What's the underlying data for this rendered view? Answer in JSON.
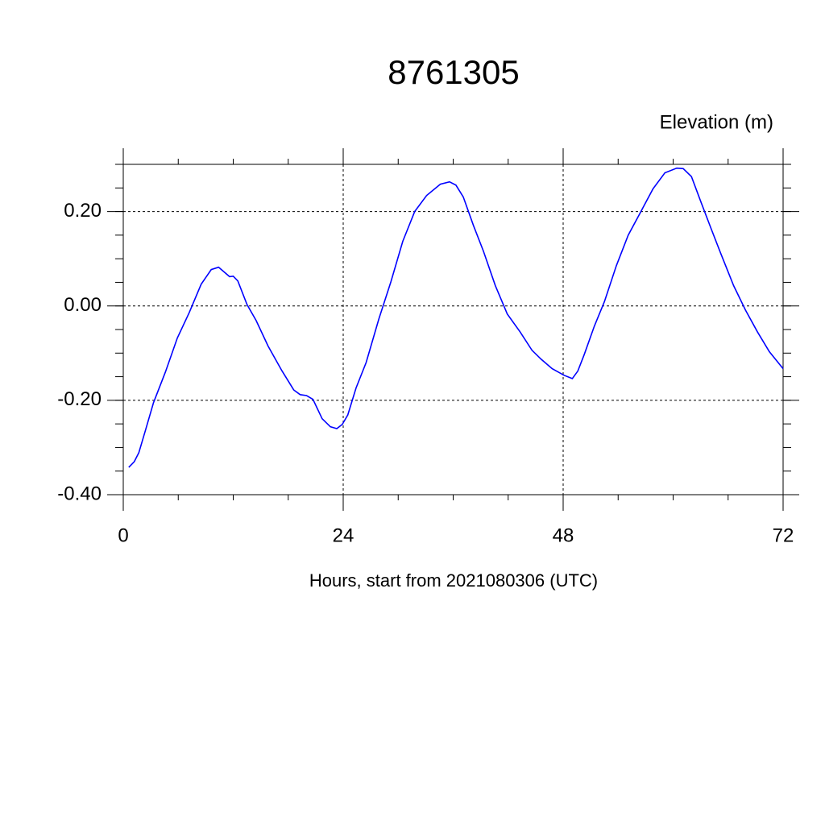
{
  "chart_data": {
    "type": "line",
    "title": "8761305",
    "subtitle": "Elevation (m)",
    "x_label": "Hours, start from 2021080306 (UTC)",
    "xlim": [
      0,
      72
    ],
    "ylim": [
      -0.4,
      0.3
    ],
    "xticks": [
      0,
      24,
      48,
      72
    ],
    "yticks": [
      {
        "value": -0.4,
        "label": "-0.40"
      },
      {
        "value": -0.2,
        "label": "-0.20"
      },
      {
        "value": 0,
        "label": "0.00"
      },
      {
        "value": 0.2,
        "label": "0.20"
      }
    ],
    "grid": true,
    "x": [
      0.6,
      1.2,
      1.7,
      2.4,
      3.3,
      4.6,
      5.9,
      7.2,
      8.5,
      9.6,
      10.4,
      11.0,
      11.6,
      12.0,
      12.5,
      13.5,
      14.5,
      15.8,
      17.3,
      18.6,
      19.3,
      20.0,
      20.7,
      21.7,
      22.6,
      23.3,
      23.9,
      24.5,
      25.4,
      26.5,
      27.9,
      29.2,
      30.5,
      31.8,
      33.1,
      34.6,
      35.6,
      36.3,
      37.1,
      38.2,
      39.3,
      40.6,
      41.9,
      43.3,
      44.6,
      45.6,
      46.8,
      48.1,
      49.0,
      49.6,
      50.3,
      51.4,
      52.5,
      53.8,
      55.1,
      56.4,
      57.8,
      59.1,
      60.4,
      61.1,
      62.0,
      63.0,
      64.1,
      65.2,
      66.6,
      67.9,
      69.2,
      70.5,
      72.0
    ],
    "series": [
      {
        "color": "#0000ff",
        "values": [
          -0.342,
          -0.33,
          -0.311,
          -0.265,
          -0.205,
          -0.14,
          -0.068,
          -0.014,
          0.046,
          0.077,
          0.082,
          0.072,
          0.062,
          0.063,
          0.053,
          0.003,
          -0.031,
          -0.085,
          -0.137,
          -0.178,
          -0.188,
          -0.19,
          -0.198,
          -0.239,
          -0.256,
          -0.26,
          -0.251,
          -0.231,
          -0.174,
          -0.12,
          -0.027,
          0.051,
          0.137,
          0.2,
          0.234,
          0.258,
          0.263,
          0.256,
          0.231,
          0.171,
          0.116,
          0.043,
          -0.017,
          -0.055,
          -0.094,
          -0.113,
          -0.133,
          -0.147,
          -0.154,
          -0.138,
          -0.103,
          -0.043,
          0.009,
          0.085,
          0.15,
          0.197,
          0.248,
          0.282,
          0.292,
          0.291,
          0.274,
          0.222,
          0.166,
          0.111,
          0.043,
          -0.009,
          -0.055,
          -0.097,
          -0.133
        ]
      }
    ]
  }
}
